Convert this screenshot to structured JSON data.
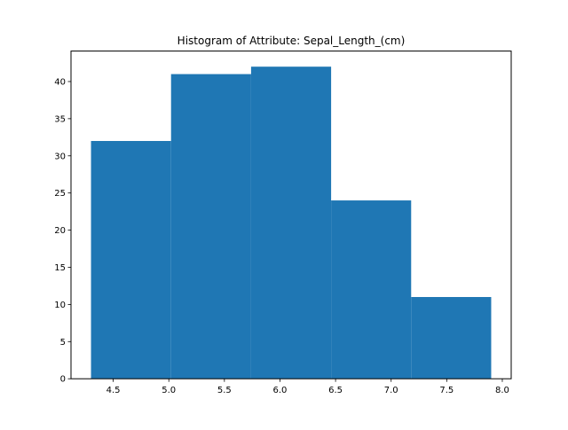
{
  "chart_data": {
    "type": "bar",
    "title": "Histogram of Attribute: Sepal_Length_(cm)",
    "xlabel": "",
    "ylabel": "",
    "bins": [
      {
        "x0": 4.3,
        "x1": 5.02,
        "count": 32
      },
      {
        "x0": 5.02,
        "x1": 5.74,
        "count": 41
      },
      {
        "x0": 5.74,
        "x1": 6.46,
        "count": 42
      },
      {
        "x0": 6.46,
        "x1": 7.18,
        "count": 24
      },
      {
        "x0": 7.18,
        "x1": 7.9,
        "count": 11
      }
    ],
    "xlim": [
      4.12,
      8.08
    ],
    "ylim": [
      0,
      44.1
    ],
    "xticks": [
      "4.5",
      "5.0",
      "5.5",
      "6.0",
      "6.5",
      "7.0",
      "7.5",
      "8.0"
    ],
    "yticks": [
      "0",
      "5",
      "10",
      "15",
      "20",
      "25",
      "30",
      "35",
      "40"
    ],
    "grid": false,
    "colors": {
      "bar": "#1f77b4",
      "axis": "#000000",
      "background": "#ffffff"
    }
  }
}
